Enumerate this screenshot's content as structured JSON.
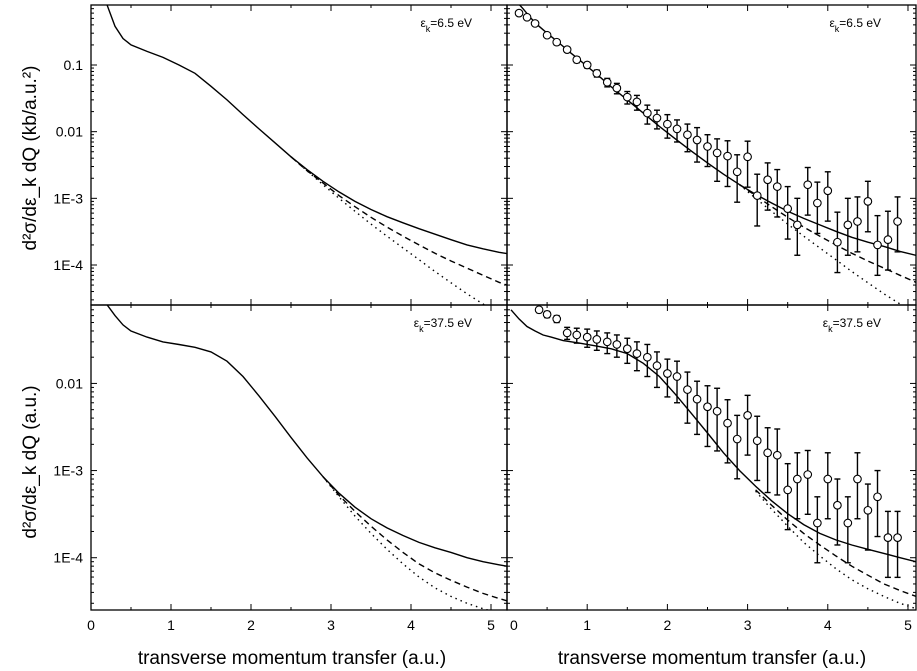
{
  "figure": {
    "xlabel": "transverse momentum transfer (a.u.)",
    "ylabel_top": "d²σ/dε_k dQ (kb/a.u.²)",
    "ylabel_bottom": "d²σ/dε_k dQ (a.u.)"
  },
  "chart_data": [
    {
      "type": "line",
      "panel": "top-left",
      "annotation": "ε_k=6.5 eV",
      "x_ticks": [
        "0",
        "1",
        "2",
        "3",
        "4",
        "5"
      ],
      "y_ticks": [
        "1E-4",
        "1E-3",
        "0.01",
        "0.1"
      ],
      "xlim": [
        0,
        5.2
      ],
      "ylim_log10": [
        -4.6,
        -0.1
      ],
      "yscale": "log",
      "series": [
        {
          "style": "solid",
          "x": [
            0.2,
            0.3,
            0.4,
            0.5,
            0.7,
            0.9,
            1.1,
            1.3,
            1.5,
            1.7,
            1.9,
            2.1,
            2.3,
            2.5,
            2.7,
            2.9,
            3.1,
            3.3,
            3.5,
            3.7,
            3.9,
            4.1,
            4.3,
            4.5,
            4.7,
            4.9,
            5.1,
            5.2
          ],
          "y": [
            0.8,
            0.38,
            0.25,
            0.2,
            0.16,
            0.13,
            0.1,
            0.075,
            0.048,
            0.03,
            0.018,
            0.011,
            0.0068,
            0.0042,
            0.0027,
            0.0018,
            0.00125,
            0.0009,
            0.00068,
            0.00053,
            0.00043,
            0.00035,
            0.00029,
            0.00024,
            0.0002,
            0.000175,
            0.000155,
            0.000148
          ]
        },
        {
          "style": "dashed",
          "x": [
            2.5,
            2.7,
            2.9,
            3.1,
            3.3,
            3.5,
            3.7,
            3.9,
            4.1,
            4.3,
            4.5,
            4.7,
            4.9,
            5.1,
            5.2
          ],
          "y": [
            0.0042,
            0.0026,
            0.0017,
            0.0011,
            0.00075,
            0.00052,
            0.00037,
            0.00027,
            0.0002,
            0.00015,
            0.000115,
            9e-05,
            7e-05,
            5.5e-05,
            5e-05
          ]
        },
        {
          "style": "dotted",
          "x": [
            2.5,
            2.7,
            2.9,
            3.1,
            3.3,
            3.5,
            3.7,
            3.9,
            4.1,
            4.3,
            4.5,
            4.7,
            4.9,
            5.1,
            5.2
          ],
          "y": [
            0.0042,
            0.0026,
            0.0016,
            0.001,
            0.00064,
            0.00041,
            0.00027,
            0.00018,
            0.00012,
            8e-05,
            5.4e-05,
            3.7e-05,
            2.6e-05,
            1.8e-05,
            1.5e-05
          ]
        }
      ]
    },
    {
      "type": "line",
      "panel": "top-right",
      "annotation": "ε_k=6.5 eV",
      "x_ticks": [
        "0",
        "1",
        "2",
        "3",
        "4",
        "5"
      ],
      "xlim": [
        0,
        5.1
      ],
      "ylim_log10": [
        -4.6,
        -0.1
      ],
      "yscale": "log",
      "series": [
        {
          "style": "solid",
          "x": [
            0.1,
            0.2,
            0.3,
            0.4,
            0.5,
            0.6,
            0.7,
            0.8,
            0.9,
            1.0,
            1.1,
            1.2,
            1.3,
            1.5,
            1.7,
            1.9,
            2.1,
            2.3,
            2.5,
            2.7,
            2.9,
            3.1,
            3.3,
            3.5,
            3.7,
            3.9,
            4.1,
            4.3,
            4.5,
            4.7,
            4.9,
            5.1
          ],
          "y": [
            0.95,
            0.7,
            0.5,
            0.38,
            0.3,
            0.24,
            0.19,
            0.15,
            0.12,
            0.095,
            0.076,
            0.06,
            0.047,
            0.03,
            0.019,
            0.012,
            0.0078,
            0.0051,
            0.0034,
            0.0023,
            0.0016,
            0.00115,
            0.00085,
            0.00064,
            0.0005,
            0.0004,
            0.00032,
            0.00026,
            0.00022,
            0.00019,
            0.00016,
            0.00014
          ]
        },
        {
          "style": "dashed",
          "x": [
            2.9,
            3.1,
            3.3,
            3.5,
            3.7,
            3.9,
            4.1,
            4.3,
            4.5,
            4.7,
            4.9,
            5.1
          ],
          "y": [
            0.0016,
            0.0011,
            0.00075,
            0.00052,
            0.00037,
            0.00027,
            0.0002,
            0.00015,
            0.000115,
            9e-05,
            7e-05,
            5.5e-05
          ]
        },
        {
          "style": "dotted",
          "x": [
            2.9,
            3.1,
            3.3,
            3.5,
            3.7,
            3.9,
            4.1,
            4.3,
            4.5,
            4.7,
            4.9,
            5.1
          ],
          "y": [
            0.0016,
            0.001,
            0.00064,
            0.00041,
            0.00027,
            0.00018,
            0.00012,
            8e-05,
            5.4e-05,
            3.7e-05,
            2.6e-05,
            1.8e-05
          ]
        },
        {
          "style": "markers",
          "x": [
            0.15,
            0.25,
            0.35,
            0.5,
            0.62,
            0.75,
            0.87,
            1.0,
            1.12,
            1.25,
            1.37,
            1.5,
            1.62,
            1.75,
            1.87,
            2.0,
            2.12,
            2.25,
            2.37,
            2.5,
            2.62,
            2.75,
            2.87,
            3.0,
            3.12,
            3.25,
            3.37,
            3.5,
            3.62,
            3.75,
            3.87,
            4.0,
            4.12,
            4.25,
            4.37,
            4.5,
            4.62,
            4.75,
            4.87
          ],
          "y": [
            0.6,
            0.52,
            0.42,
            0.28,
            0.22,
            0.17,
            0.12,
            0.1,
            0.075,
            0.055,
            0.045,
            0.033,
            0.028,
            0.019,
            0.016,
            0.013,
            0.011,
            0.009,
            0.0075,
            0.006,
            0.0048,
            0.0043,
            0.0025,
            0.0042,
            0.0011,
            0.0019,
            0.0015,
            0.0007,
            0.0004,
            0.0016,
            0.00085,
            0.0013,
            0.00022,
            0.0004,
            0.00045,
            0.0009,
            0.0002,
            0.00024,
            0.00045
          ],
          "err": [
            0.05,
            0.04,
            0.03,
            0.02,
            0.02,
            0.015,
            0.012,
            0.01,
            0.009,
            0.008,
            0.008,
            0.007,
            0.007,
            0.006,
            0.005,
            0.005,
            0.004,
            0.004,
            0.004,
            0.003,
            0.003,
            0.003,
            0.002,
            0.003,
            0.0012,
            0.0015,
            0.0012,
            0.0008,
            0.0006,
            0.0013,
            0.0009,
            0.0012,
            0.0004,
            0.0006,
            0.0006,
            0.0009,
            0.00035,
            0.0004,
            0.0006
          ]
        }
      ]
    },
    {
      "type": "line",
      "panel": "bottom-left",
      "annotation": "ε_k=37.5 eV",
      "x_ticks": [
        "0",
        "1",
        "2",
        "3",
        "4",
        "5"
      ],
      "y_ticks": [
        "1E-4",
        "1E-3",
        "0.01"
      ],
      "xlim": [
        0,
        5.2
      ],
      "ylim_log10": [
        -4.6,
        -1.1
      ],
      "yscale": "log",
      "series": [
        {
          "style": "solid",
          "x": [
            0.2,
            0.3,
            0.4,
            0.5,
            0.7,
            0.9,
            1.1,
            1.3,
            1.5,
            1.7,
            1.9,
            2.1,
            2.3,
            2.5,
            2.7,
            2.9,
            3.1,
            3.3,
            3.5,
            3.7,
            3.9,
            4.1,
            4.3,
            4.5,
            4.7,
            4.9,
            5.1,
            5.2
          ],
          "y": [
            0.08,
            0.06,
            0.047,
            0.04,
            0.034,
            0.03,
            0.028,
            0.026,
            0.023,
            0.018,
            0.012,
            0.0072,
            0.0042,
            0.0024,
            0.0014,
            0.00085,
            0.00055,
            0.00038,
            0.00028,
            0.00022,
            0.00018,
            0.00015,
            0.00013,
            0.000115,
            0.0001,
            9e-05,
            8.3e-05,
            8e-05
          ]
        },
        {
          "style": "dashed",
          "x": [
            2.9,
            3.1,
            3.3,
            3.5,
            3.7,
            3.9,
            4.1,
            4.3,
            4.5,
            4.7,
            4.9,
            5.1,
            5.2
          ],
          "y": [
            0.00085,
            0.00052,
            0.00034,
            0.00023,
            0.00016,
            0.000115,
            8.5e-05,
            6.7e-05,
            5.5e-05,
            4.6e-05,
            3.9e-05,
            3.4e-05,
            3.2e-05
          ]
        },
        {
          "style": "dotted",
          "x": [
            2.9,
            3.1,
            3.3,
            3.5,
            3.7,
            3.9,
            4.1,
            4.3,
            4.5,
            4.7,
            4.9,
            5.1,
            5.2
          ],
          "y": [
            0.00085,
            0.0005,
            0.0003,
            0.00019,
            0.000125,
            8.5e-05,
            6e-05,
            4.5e-05,
            3.6e-05,
            3e-05,
            2.6e-05,
            2.3e-05,
            2.2e-05
          ]
        }
      ]
    },
    {
      "type": "line",
      "panel": "bottom-right",
      "annotation": "ε_k=37.5 eV",
      "x_ticks": [
        "0",
        "1",
        "2",
        "3",
        "4",
        "5"
      ],
      "xlim": [
        0,
        5.1
      ],
      "ylim_log10": [
        -4.6,
        -1.1
      ],
      "yscale": "log",
      "series": [
        {
          "style": "solid",
          "x": [
            0.05,
            0.15,
            0.25,
            0.35,
            0.45,
            0.55,
            0.7,
            0.9,
            1.1,
            1.3,
            1.5,
            1.7,
            1.9,
            2.1,
            2.3,
            2.5,
            2.7,
            2.9,
            3.1,
            3.3,
            3.5,
            3.7,
            3.9,
            4.1,
            4.3,
            4.5,
            4.7,
            4.9,
            5.1
          ],
          "y": [
            0.07,
            0.055,
            0.045,
            0.04,
            0.036,
            0.034,
            0.031,
            0.029,
            0.027,
            0.025,
            0.022,
            0.017,
            0.012,
            0.0075,
            0.0045,
            0.0027,
            0.0016,
            0.001,
            0.00066,
            0.00045,
            0.00032,
            0.00024,
            0.00019,
            0.00016,
            0.00014,
            0.000125,
            0.000112,
            0.0001,
            9e-05
          ]
        },
        {
          "style": "dashed",
          "x": [
            3.1,
            3.3,
            3.5,
            3.7,
            3.9,
            4.1,
            4.3,
            4.5,
            4.7,
            4.9,
            5.1
          ],
          "y": [
            0.0006,
            0.0004,
            0.00027,
            0.00019,
            0.00014,
            0.000105,
            8e-05,
            6.3e-05,
            5e-05,
            4.2e-05,
            3.6e-05
          ]
        },
        {
          "style": "dotted",
          "x": [
            3.1,
            3.3,
            3.5,
            3.7,
            3.9,
            4.1,
            4.3,
            4.5,
            4.7,
            4.9,
            5.1
          ],
          "y": [
            0.00058,
            0.00036,
            0.00023,
            0.00015,
            0.000105,
            7.5e-05,
            5.6e-05,
            4.4e-05,
            3.6e-05,
            3e-05,
            2.6e-05
          ]
        },
        {
          "style": "markers",
          "x": [
            0.4,
            0.5,
            0.62,
            0.75,
            0.87,
            1.0,
            1.12,
            1.25,
            1.37,
            1.5,
            1.62,
            1.75,
            1.87,
            2.0,
            2.12,
            2.25,
            2.37,
            2.5,
            2.62,
            2.75,
            2.87,
            3.0,
            3.12,
            3.25,
            3.37,
            3.5,
            3.62,
            3.75,
            3.87,
            4.0,
            4.12,
            4.25,
            4.37,
            4.5,
            4.62,
            4.75,
            4.87
          ],
          "y": [
            0.07,
            0.062,
            0.055,
            0.038,
            0.036,
            0.034,
            0.032,
            0.03,
            0.028,
            0.025,
            0.022,
            0.02,
            0.016,
            0.013,
            0.012,
            0.0085,
            0.0066,
            0.0054,
            0.0048,
            0.0035,
            0.0023,
            0.0043,
            0.0022,
            0.0016,
            0.0015,
            0.0006,
            0.0008,
            0.0009,
            0.00025,
            0.0008,
            0.0004,
            0.00025,
            0.0008,
            0.00035,
            0.0005,
            0.00017,
            0.00017
          ],
          "err": [
            0.005,
            0.005,
            0.005,
            0.006,
            0.007,
            0.008,
            0.008,
            0.008,
            0.008,
            0.008,
            0.008,
            0.008,
            0.007,
            0.006,
            0.006,
            0.005,
            0.004,
            0.004,
            0.004,
            0.003,
            0.002,
            0.003,
            0.002,
            0.0015,
            0.0015,
            0.0006,
            0.0008,
            0.0008,
            0.00025,
            0.0008,
            0.0004,
            0.00025,
            0.0008,
            0.00035,
            0.0005,
            0.00017,
            0.00017
          ]
        }
      ]
    }
  ]
}
